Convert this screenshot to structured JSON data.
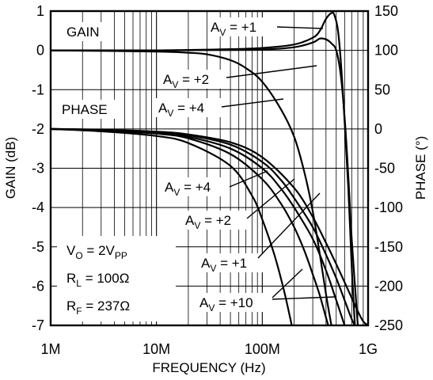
{
  "chart_data": {
    "type": "line",
    "title": "",
    "xlabel": "FREQUENCY (Hz)",
    "ylabel_left": "GAIN (dB)",
    "ylabel_right": "PHASE (°)",
    "x_scale": "log",
    "xlim_hz": [
      1000000,
      1000000000
    ],
    "x_ticks": [
      {
        "value": 1000000,
        "label": "1M"
      },
      {
        "value": 10000000,
        "label": "10M"
      },
      {
        "value": 100000000,
        "label": "100M"
      },
      {
        "value": 1000000000,
        "label": "1G"
      }
    ],
    "ylim_left": [
      -7,
      1
    ],
    "y_ticks_left": [
      {
        "value": 1,
        "label": "1"
      },
      {
        "value": 0,
        "label": "0"
      },
      {
        "value": -1,
        "label": "-1"
      },
      {
        "value": -2,
        "label": "-2"
      },
      {
        "value": -3,
        "label": "-3"
      },
      {
        "value": -4,
        "label": "-4"
      },
      {
        "value": -5,
        "label": "-5"
      },
      {
        "value": -6,
        "label": "-6"
      },
      {
        "value": -7,
        "label": "-7"
      }
    ],
    "ylim_right": [
      -250,
      150
    ],
    "y_ticks_right": [
      {
        "value": 150,
        "label": "150"
      },
      {
        "value": 100,
        "label": "100"
      },
      {
        "value": 50,
        "label": "50"
      },
      {
        "value": 0,
        "label": "0"
      },
      {
        "value": -50,
        "label": "-50"
      },
      {
        "value": -100,
        "label": "-100"
      },
      {
        "value": -150,
        "label": "-150"
      },
      {
        "value": -200,
        "label": "-200"
      },
      {
        "value": -250,
        "label": "-250"
      }
    ],
    "grid": true,
    "section_labels": {
      "gain": "GAIN",
      "phase": "PHASE"
    },
    "conditions": {
      "vo": "2",
      "rl": "100Ω",
      "rf": "237Ω"
    },
    "gain_series": [
      {
        "gain_setting": "+1",
        "points": [
          [
            1000000,
            0
          ],
          [
            10000000,
            0
          ],
          [
            50000000,
            0.03
          ],
          [
            100000000,
            0.06
          ],
          [
            200000000,
            0.15
          ],
          [
            300000000,
            0.32
          ],
          [
            350000000,
            0.5
          ],
          [
            400000000,
            0.8
          ],
          [
            450000000,
            0.95
          ],
          [
            480000000,
            0.9
          ],
          [
            520000000,
            0.5
          ],
          [
            560000000,
            -0.5
          ],
          [
            600000000,
            -1.8
          ],
          [
            650000000,
            -3.5
          ],
          [
            700000000,
            -5.5
          ],
          [
            750000000,
            -7
          ]
        ]
      },
      {
        "gain_setting": "+2",
        "points": [
          [
            1000000,
            0
          ],
          [
            10000000,
            0
          ],
          [
            50000000,
            0.01
          ],
          [
            100000000,
            0.02
          ],
          [
            200000000,
            0.08
          ],
          [
            300000000,
            0.2
          ],
          [
            350000000,
            0.3
          ],
          [
            400000000,
            0.28
          ],
          [
            450000000,
            0.18
          ],
          [
            500000000,
            0
          ],
          [
            550000000,
            -0.6
          ],
          [
            600000000,
            -1.7
          ],
          [
            650000000,
            -3.2
          ],
          [
            700000000,
            -4.8
          ],
          [
            800000000,
            -7
          ]
        ]
      },
      {
        "gain_setting": "+4",
        "points": [
          [
            1000000,
            0
          ],
          [
            10000000,
            -0.03
          ],
          [
            20000000,
            -0.06
          ],
          [
            30000000,
            -0.1
          ],
          [
            50000000,
            -0.25
          ],
          [
            70000000,
            -0.45
          ],
          [
            100000000,
            -0.8
          ],
          [
            150000000,
            -1.5
          ],
          [
            200000000,
            -2.2
          ],
          [
            250000000,
            -3.1
          ],
          [
            300000000,
            -4.1
          ],
          [
            350000000,
            -5.2
          ],
          [
            400000000,
            -6.2
          ],
          [
            450000000,
            -7
          ]
        ]
      }
    ],
    "phase_series": [
      {
        "gain_setting": "+4",
        "points": [
          [
            1000000,
            0
          ],
          [
            3000000,
            -2
          ],
          [
            10000000,
            -6
          ],
          [
            20000000,
            -12
          ],
          [
            50000000,
            -32
          ],
          [
            100000000,
            -64
          ],
          [
            150000000,
            -95
          ],
          [
            200000000,
            -125
          ],
          [
            250000000,
            -155
          ],
          [
            300000000,
            -185
          ],
          [
            350000000,
            -212
          ],
          [
            400000000,
            -240
          ],
          [
            420000000,
            -250
          ]
        ]
      },
      {
        "gain_setting": "+2",
        "points": [
          [
            1000000,
            0
          ],
          [
            3000000,
            -1.5
          ],
          [
            10000000,
            -5
          ],
          [
            20000000,
            -10
          ],
          [
            50000000,
            -25
          ],
          [
            100000000,
            -50
          ],
          [
            150000000,
            -76
          ],
          [
            200000000,
            -100
          ],
          [
            300000000,
            -140
          ],
          [
            400000000,
            -180
          ],
          [
            500000000,
            -218
          ],
          [
            600000000,
            -250
          ]
        ]
      },
      {
        "gain_setting": "+1",
        "points": [
          [
            1000000,
            0
          ],
          [
            3000000,
            -1.2
          ],
          [
            10000000,
            -4
          ],
          [
            20000000,
            -8
          ],
          [
            50000000,
            -20
          ],
          [
            100000000,
            -42
          ],
          [
            150000000,
            -65
          ],
          [
            200000000,
            -88
          ],
          [
            300000000,
            -125
          ],
          [
            400000000,
            -160
          ],
          [
            500000000,
            -190
          ],
          [
            600000000,
            -218
          ],
          [
            700000000,
            -242
          ],
          [
            750000000,
            -250
          ]
        ]
      },
      {
        "gain_setting": "+10",
        "points": [
          [
            1000000,
            0
          ],
          [
            3000000,
            -3
          ],
          [
            10000000,
            -9
          ],
          [
            20000000,
            -18
          ],
          [
            50000000,
            -47
          ],
          [
            80000000,
            -85
          ],
          [
            100000000,
            -115
          ],
          [
            130000000,
            -160
          ],
          [
            160000000,
            -205
          ],
          [
            190000000,
            -250
          ]
        ]
      },
      {
        "gain_setting": "+10",
        "points": [
          [
            1000000,
            0
          ],
          [
            3000000,
            -1
          ],
          [
            10000000,
            -3.5
          ],
          [
            20000000,
            -7
          ],
          [
            50000000,
            -17
          ],
          [
            100000000,
            -36
          ],
          [
            200000000,
            -75
          ],
          [
            300000000,
            -112
          ],
          [
            400000000,
            -145
          ],
          [
            500000000,
            -172
          ],
          [
            600000000,
            -195
          ],
          [
            700000000,
            -215
          ],
          [
            800000000,
            -232
          ],
          [
            900000000,
            -245
          ],
          [
            1000000000,
            -250
          ]
        ]
      }
    ],
    "annotations": [
      {
        "text": "A",
        "sub": "V",
        "value": " = +1"
      },
      {
        "text": "A",
        "sub": "V",
        "value": " = +2"
      },
      {
        "text": "A",
        "sub": "V",
        "value": " = +4"
      },
      {
        "text": "A",
        "sub": "V",
        "value": " = +4"
      },
      {
        "text": "A",
        "sub": "V",
        "value": " = +2"
      },
      {
        "text": "A",
        "sub": "V",
        "value": " = +1"
      },
      {
        "text": "A",
        "sub": "V",
        "value": " = +10"
      }
    ]
  }
}
